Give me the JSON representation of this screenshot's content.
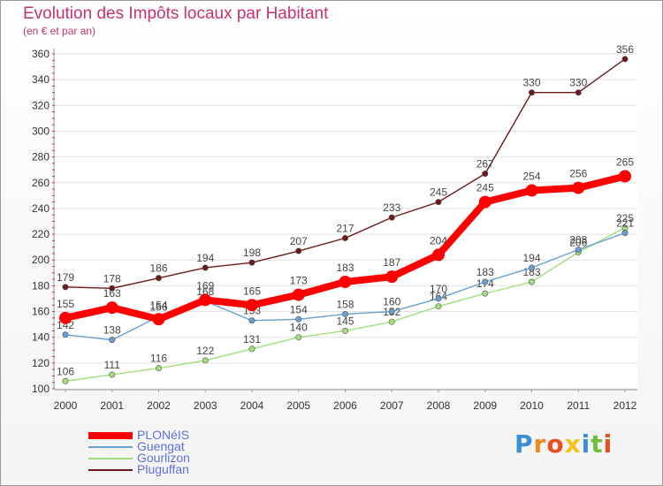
{
  "chart_data": {
    "type": "line",
    "title": "Evolution des Impôts locaux par Habitant",
    "subtitle": "(en € et par an)",
    "categories": [
      "2000",
      "2001",
      "2002",
      "2003",
      "2004",
      "2005",
      "2006",
      "2007",
      "2008",
      "2009",
      "2010",
      "2011",
      "2012"
    ],
    "ylim": [
      100,
      360
    ],
    "yticks": [
      100,
      120,
      140,
      160,
      180,
      200,
      220,
      240,
      260,
      280,
      300,
      320,
      340,
      360
    ],
    "series": [
      {
        "name": "Pluguffan",
        "color": "#6b1a1a",
        "values": [
          179,
          178,
          186,
          194,
          198,
          207,
          217,
          233,
          245,
          267,
          330,
          330,
          356
        ],
        "labels": [
          "179",
          "178",
          "186",
          "194",
          "198",
          "207",
          "217",
          "233",
          "245",
          "267",
          "330",
          "330",
          "356"
        ],
        "label_pos": "above",
        "weight": "thin"
      },
      {
        "name": "Gourlizon",
        "color": "#a3dd7e",
        "values": [
          106,
          111,
          116,
          122,
          131,
          140,
          145,
          152,
          164,
          174,
          183,
          206,
          225
        ],
        "labels": [
          "106",
          "111",
          "116",
          "122",
          "131",
          "140",
          "145",
          "152",
          "164",
          "174",
          "183",
          "206",
          "225"
        ],
        "label_pos": "above",
        "weight": "thin"
      },
      {
        "name": "Guengat",
        "color": "#6a9fd0",
        "values": [
          142,
          138,
          156,
          168,
          153,
          154,
          158,
          160,
          170,
          183,
          194,
          208,
          221
        ],
        "labels": [
          "142",
          "138",
          "156",
          "168",
          "153",
          "154",
          "158",
          "160",
          "170",
          "183",
          "194",
          "208",
          "221"
        ],
        "label_pos": "above",
        "weight": "thin"
      },
      {
        "name": "PLONéIS",
        "color": "#ff0000",
        "values": [
          155,
          163,
          154,
          169,
          165,
          173,
          183,
          187,
          204,
          245,
          254,
          256,
          265
        ],
        "labels": [
          "155",
          "163",
          "154",
          "169",
          "165",
          "173",
          "183",
          "187",
          "204",
          "245",
          "254",
          "256",
          "265"
        ],
        "label_pos": "above",
        "weight": "thick"
      }
    ],
    "legend": [
      "PLONéIS",
      "Guengat",
      "Gourlizon",
      "Pluguffan"
    ],
    "legend_colors": [
      "#ff0000",
      "#6a9fd0",
      "#a3dd7e",
      "#6b1a1a"
    ]
  },
  "logo": {
    "letters": [
      "P",
      "r",
      "o",
      "x",
      "i",
      "t",
      "i"
    ],
    "colors": [
      "#3c8dd6",
      "#f08a1c",
      "#e94e1b",
      "#f7c21a",
      "#3c8dd6",
      "#6cbf3a",
      "#e94e1b"
    ]
  }
}
